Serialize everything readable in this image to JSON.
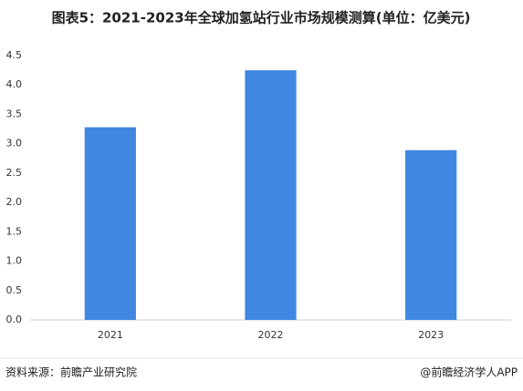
{
  "chart_data": {
    "type": "bar",
    "title": "图表5：2021-2023年全球加氢站行业市场规模测算(单位：亿美元)",
    "categories": [
      "2021",
      "2022",
      "2023"
    ],
    "values": [
      3.28,
      4.25,
      2.89
    ],
    "color": "#3f87e0",
    "ylim": [
      0,
      4.5
    ],
    "yticks": [
      {
        "value": 0,
        "label": "0.0"
      },
      0.5,
      {
        "value": 1,
        "label": "1.0"
      },
      1.5,
      {
        "value": 2,
        "label": "2.0"
      },
      2.5,
      {
        "value": 3,
        "label": "3.0"
      },
      3.5,
      {
        "value": 4,
        "label": "4.0"
      },
      4.5
    ],
    "grid": false
  },
  "footer": {
    "source": "资料来源：前瞻产业研究院",
    "brand": "@前瞻经济学人APP"
  }
}
